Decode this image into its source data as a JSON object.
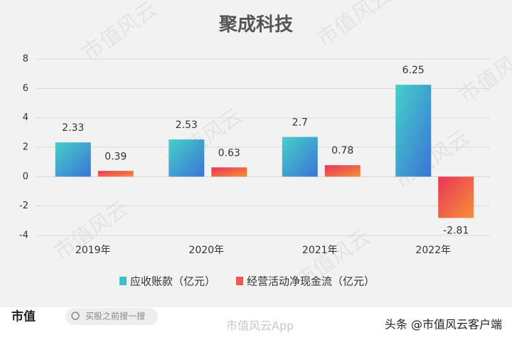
{
  "chart_data": {
    "type": "bar",
    "title": "聚成科技",
    "categories": [
      "2019年",
      "2020年",
      "2021年",
      "2022年"
    ],
    "series": [
      {
        "name": "应收账款（亿元）",
        "color": "#3fbfc9",
        "gradient": [
          "#45d0c8",
          "#3b74d6"
        ],
        "values": [
          2.33,
          2.53,
          2.7,
          6.25
        ]
      },
      {
        "name": "经营活动净现金流（亿元）",
        "color": "#ee5a4a",
        "gradient": [
          "#e8345a",
          "#f69038"
        ],
        "values": [
          0.39,
          0.63,
          0.78,
          -2.81
        ]
      }
    ],
    "ylim": [
      -4,
      8
    ],
    "yticks": [
      -4,
      -2,
      0,
      2,
      4,
      6,
      8
    ],
    "grid": true,
    "legend": "bottom"
  },
  "watermark": "市值风云",
  "footer": {
    "logo": "市值",
    "search": "买股之前搜一搜",
    "app": "市值风云App",
    "source": "头条 @市值风云客户端"
  }
}
